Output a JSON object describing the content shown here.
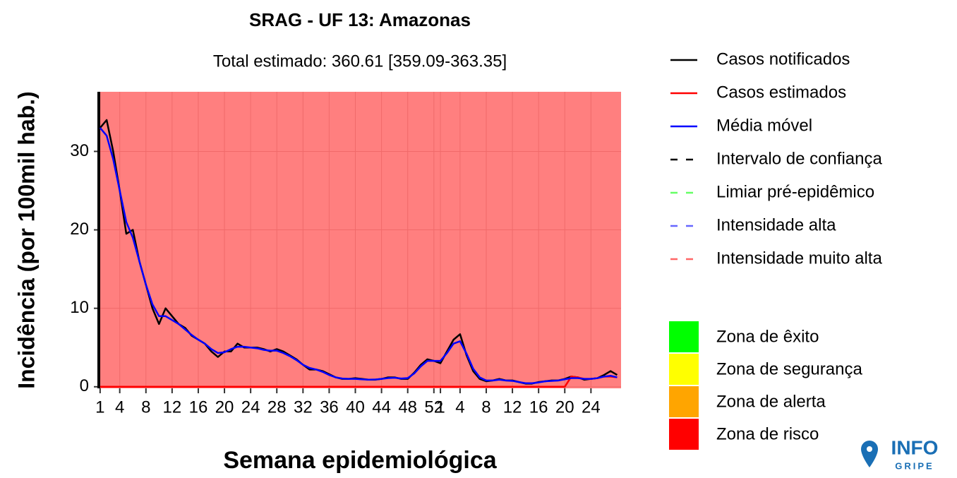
{
  "chart_data": {
    "type": "line",
    "title": "SRAG - UF 13: Amazonas",
    "subtitle": "Total estimado: 360.61 [359.09-363.35]",
    "x_label": "Semana epidemiológica",
    "y_label": "Incidência (por 100mil hab.)",
    "x": [
      1,
      2,
      3,
      4,
      5,
      6,
      7,
      8,
      9,
      10,
      11,
      12,
      13,
      14,
      15,
      16,
      17,
      18,
      19,
      20,
      21,
      22,
      23,
      24,
      25,
      26,
      27,
      28,
      29,
      30,
      31,
      32,
      33,
      34,
      35,
      36,
      37,
      38,
      39,
      40,
      41,
      42,
      43,
      44,
      45,
      46,
      47,
      48,
      49,
      50,
      51,
      52,
      53,
      54,
      55,
      56,
      57,
      58,
      59,
      60,
      61,
      62,
      63,
      64,
      65,
      66,
      67,
      68,
      69,
      70,
      71,
      72,
      73,
      74,
      75,
      76,
      77,
      78,
      79,
      80
    ],
    "xlim": [
      0.8,
      80.6
    ],
    "xticks": [
      1,
      4,
      8,
      12,
      16,
      20,
      24,
      28,
      32,
      36,
      40,
      44,
      48,
      52,
      {
        "value": 53,
        "label": "1"
      },
      {
        "value": 56,
        "label": "4"
      },
      {
        "value": 60,
        "label": "8"
      },
      {
        "value": 64,
        "label": "12"
      },
      {
        "value": 68,
        "label": "16"
      },
      {
        "value": 72,
        "label": "20"
      },
      {
        "value": 76,
        "label": "24"
      }
    ],
    "ylim": [
      -0.2,
      37.6
    ],
    "yticks": [
      0,
      10,
      20,
      30
    ],
    "grid": true,
    "background_zone": 3,
    "zone_opacity": 0.5,
    "series": [
      {
        "name": "Casos notificados",
        "color": "#000000",
        "values": [
          33,
          34,
          30,
          25,
          19.5,
          20,
          16,
          13,
          10,
          8,
          10,
          9,
          8,
          7.5,
          6.5,
          6,
          5.5,
          4.5,
          3.8,
          4.5,
          4.5,
          5.5,
          5,
          5,
          5,
          4.8,
          4.5,
          4.8,
          4.5,
          4,
          3.5,
          2.8,
          2.2,
          2.2,
          2,
          1.6,
          1.2,
          1,
          1,
          1.1,
          1,
          0.9,
          0.9,
          1,
          1.2,
          1.2,
          1,
          1,
          1.8,
          2.8,
          3.5,
          3.3,
          3,
          4.5,
          6,
          6.7,
          4,
          2,
          1,
          0.7,
          0.8,
          1,
          0.8,
          0.8,
          0.6,
          0.4,
          0.4,
          0.6,
          0.7,
          0.8,
          0.8,
          1,
          1.3,
          1.2,
          0.9,
          1,
          1.1,
          1.5,
          2,
          1.5
        ]
      },
      {
        "name": "Casos estimados",
        "color": "#ff0000",
        "values": [
          0,
          0,
          0,
          0,
          0,
          0,
          0,
          0,
          0,
          0,
          0,
          0,
          0,
          0,
          0,
          0,
          0,
          0,
          0,
          0,
          0,
          0,
          0,
          0,
          0,
          0,
          0,
          0,
          0,
          0,
          0,
          0,
          0,
          0,
          0,
          0,
          0,
          0,
          0,
          0,
          0,
          0,
          0,
          0,
          0,
          0,
          0,
          0,
          0,
          0,
          0,
          0,
          0,
          0,
          0,
          0,
          0,
          0,
          0,
          0,
          0,
          0,
          0,
          0,
          0,
          0,
          0,
          0,
          0,
          0,
          0,
          0,
          1.3,
          1.2,
          1,
          1,
          1.1,
          1.3,
          1.3,
          1.2
        ]
      },
      {
        "name": "Média móvel",
        "color": "#0000ff",
        "values": [
          33,
          32,
          29,
          25,
          21,
          19,
          16,
          13,
          10.5,
          9,
          9,
          8.5,
          8,
          7.3,
          6.6,
          6,
          5.5,
          4.8,
          4.3,
          4.4,
          4.8,
          5.1,
          5.1,
          5,
          4.9,
          4.7,
          4.6,
          4.6,
          4.3,
          3.9,
          3.4,
          2.8,
          2.4,
          2.2,
          1.9,
          1.5,
          1.2,
          1.05,
          1,
          1,
          0.95,
          0.9,
          0.92,
          1,
          1.1,
          1.15,
          1.05,
          1.1,
          1.7,
          2.6,
          3.3,
          3.3,
          3.3,
          4.3,
          5.5,
          5.8,
          4.2,
          2.3,
          1.2,
          0.8,
          0.8,
          0.9,
          0.8,
          0.75,
          0.6,
          0.45,
          0.45,
          0.55,
          0.7,
          0.75,
          0.8,
          0.95,
          1.1,
          1.1,
          1,
          1,
          1.1,
          1.3,
          1.4,
          1.2
        ]
      }
    ],
    "dashed_legend": [
      {
        "name": "Intervalo de confiança",
        "color": "#000000"
      },
      {
        "name": "Limiar pré-epidêmico",
        "color": "#00ff00"
      },
      {
        "name": "Intensidade alta",
        "color": "#0000ff"
      },
      {
        "name": "Intensidade muito alta",
        "color": "#ff0000"
      }
    ],
    "zones": [
      {
        "name": "Zona de êxito",
        "color": "#00ff00"
      },
      {
        "name": "Zona de segurança",
        "color": "#ffff00"
      },
      {
        "name": "Zona de alerta",
        "color": "#ffa500"
      },
      {
        "name": "Zona de risco",
        "color": "#ff0000"
      }
    ],
    "logo": {
      "top": "INFO",
      "bottom": "GRIPE"
    }
  }
}
